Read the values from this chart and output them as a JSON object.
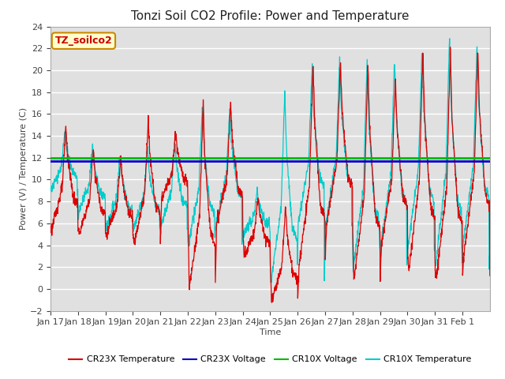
{
  "title": "Tonzi Soil CO2 Profile: Power and Temperature",
  "xlabel": "Time",
  "ylabel": "Power (V) / Temperature (C)",
  "ylim": [
    -2,
    24
  ],
  "yticks": [
    -2,
    0,
    2,
    4,
    6,
    8,
    10,
    12,
    14,
    16,
    18,
    20,
    22,
    24
  ],
  "plot_bg_color": "#e0e0e0",
  "fig_bg_color": "#ffffff",
  "cr23x_voltage": 11.7,
  "cr10x_voltage": 11.95,
  "cr23x_voltage_color": "#0000cc",
  "cr10x_voltage_color": "#00bb00",
  "cr23x_temp_color": "#dd0000",
  "cr10x_temp_color": "#00cccc",
  "annotation_text": "TZ_soilco2",
  "annotation_bg": "#ffffcc",
  "annotation_border": "#cc8800",
  "tick_label_dates": [
    "Jan 17",
    "Jan 18",
    "Jan 19",
    "Jan 20",
    "Jan 21",
    "Jan 22",
    "Jan 23",
    "Jan 24",
    "Jan 25",
    "Jan 26",
    "Jan 27",
    "Jan 28",
    "Jan 29",
    "Jan 30",
    "Jan 31",
    "Feb 1"
  ],
  "legend_entries": [
    "CR23X Temperature",
    "CR23X Voltage",
    "CR10X Voltage",
    "CR10X Temperature"
  ],
  "legend_colors": [
    "#dd0000",
    "#0000cc",
    "#00bb00",
    "#00cccc"
  ],
  "title_fontsize": 11,
  "axis_fontsize": 8,
  "tick_fontsize": 8
}
